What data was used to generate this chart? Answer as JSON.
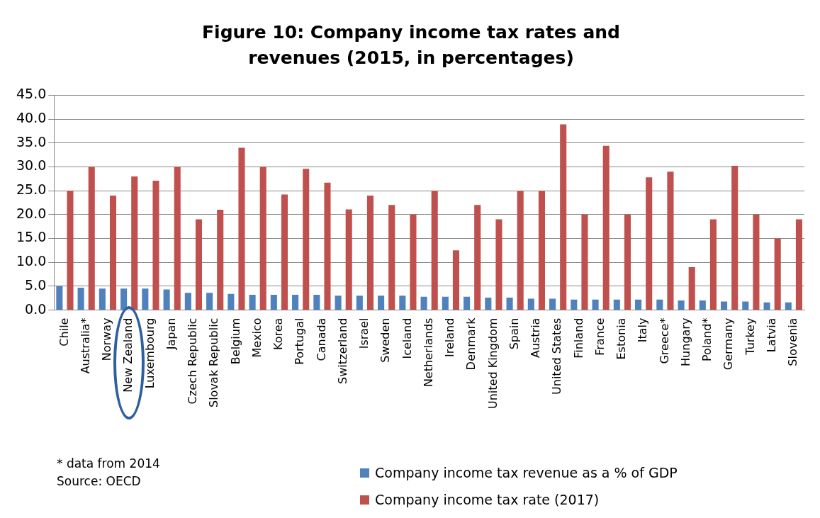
{
  "chart_data": {
    "type": "bar",
    "title": "Figure 10: Company income tax rates and revenues (2015, in percentages)",
    "categories": [
      "Chile",
      "Australia*",
      "Norway",
      "New Zealand",
      "Luxembourg",
      "Japan",
      "Czech Republic",
      "Slovak Republic",
      "Belgium",
      "Mexico",
      "Korea",
      "Portugal",
      "Canada",
      "Switzerland",
      "Israel",
      "Sweden",
      "Iceland",
      "Netherlands",
      "Ireland",
      "Denmark",
      "United Kingdom",
      "Spain",
      "Austria",
      "United States",
      "Finland",
      "France",
      "Estonia",
      "Italy",
      "Greece*",
      "Hungary",
      "Poland*",
      "Germany",
      "Turkey",
      "Latvia",
      "Slovenia"
    ],
    "series": [
      {
        "name": "Company income tax revenue as a % of GDP",
        "color": "#4f81bd",
        "values": [
          5.0,
          4.7,
          4.5,
          4.5,
          4.5,
          4.3,
          3.6,
          3.6,
          3.4,
          3.2,
          3.2,
          3.2,
          3.2,
          3.0,
          3.0,
          3.0,
          3.0,
          2.8,
          2.8,
          2.8,
          2.6,
          2.6,
          2.4,
          2.4,
          2.2,
          2.2,
          2.2,
          2.2,
          2.2,
          2.0,
          2.0,
          1.8,
          1.8,
          1.6,
          1.6
        ]
      },
      {
        "name": "Company income tax rate (2017)",
        "color": "#c0504d",
        "values": [
          25,
          30,
          24,
          28,
          27.1,
          30,
          19,
          21,
          34,
          30,
          24.2,
          29.6,
          26.7,
          21.1,
          24,
          22,
          20,
          25,
          12.5,
          22,
          19,
          25,
          25,
          38.9,
          20,
          34.4,
          20,
          27.8,
          29,
          9,
          19,
          30.2,
          20,
          15,
          19
        ]
      }
    ],
    "ylim": [
      0,
      45
    ],
    "yticks": [
      {
        "value": 0,
        "label": "0.0"
      },
      {
        "value": 5,
        "label": "5.0"
      },
      {
        "value": 10,
        "label": "10.0"
      },
      {
        "value": 15,
        "label": "15.0"
      },
      {
        "value": 20,
        "label": "20.0"
      },
      {
        "value": 25,
        "label": "25.0"
      },
      {
        "value": 30,
        "label": "30.0"
      },
      {
        "value": 35,
        "label": "35.0"
      },
      {
        "value": 40,
        "label": "40.0"
      },
      {
        "value": 45,
        "label": "45.0"
      }
    ],
    "grid": "y",
    "legend": "bottom",
    "annotations": [
      "* data from 2014",
      "Source: OECD"
    ]
  }
}
